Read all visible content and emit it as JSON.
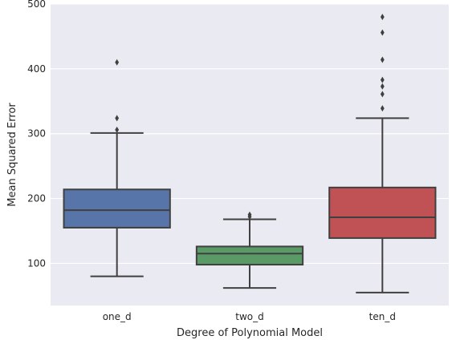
{
  "chart_data": {
    "type": "box",
    "xlabel": "Degree of Polynomial Model",
    "ylabel": "Mean Squared Error",
    "ylim": [
      35,
      500
    ],
    "yticks": [
      100,
      200,
      300,
      400,
      500
    ],
    "grid": true,
    "categories": [
      "one_d",
      "two_d",
      "ten_d"
    ],
    "boxes": [
      {
        "name": "one_d",
        "whisker_low": 80,
        "q1": 155,
        "median": 182,
        "q3": 214,
        "whisker_high": 301,
        "outliers": [
          306,
          324,
          410
        ],
        "color": "#5875a9"
      },
      {
        "name": "two_d",
        "whisker_low": 62,
        "q1": 98,
        "median": 115,
        "q3": 126,
        "whisker_high": 168,
        "outliers": [
          172,
          175
        ],
        "color": "#5a9a66"
      },
      {
        "name": "ten_d",
        "whisker_low": 55,
        "q1": 139,
        "median": 171,
        "q3": 217,
        "whisker_high": 324,
        "outliers": [
          339,
          361,
          373,
          383,
          414,
          456,
          480
        ],
        "color": "#c05154"
      }
    ]
  },
  "style": {
    "background": "#eaeaf2",
    "grid_color": "#ffffff",
    "line_color": "#404040"
  }
}
